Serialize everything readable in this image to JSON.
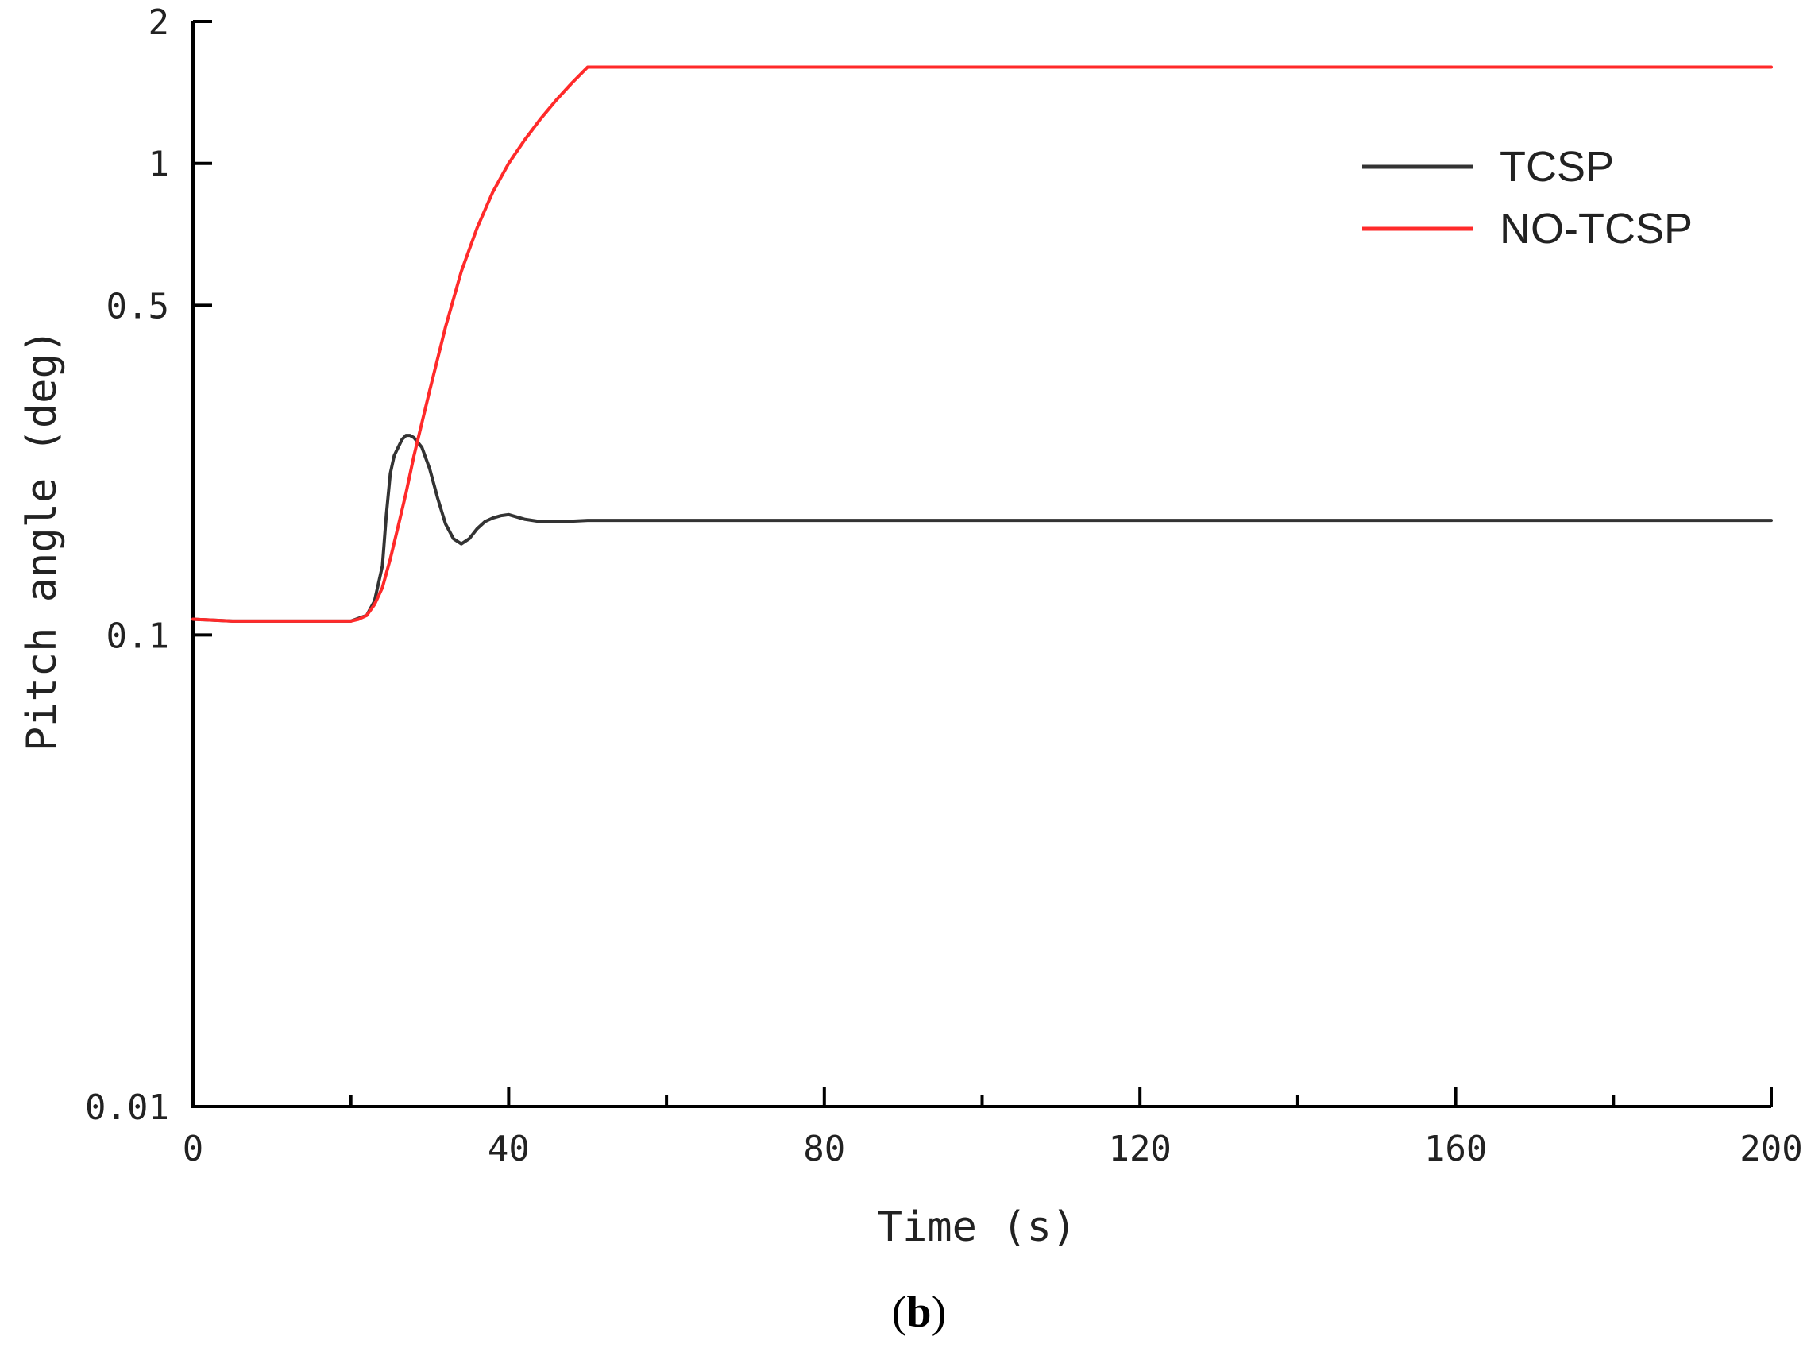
{
  "chart_data": {
    "type": "line",
    "xlabel": "Time (s)",
    "ylabel": "Pitch angle (deg)",
    "caption": {
      "open": "(",
      "letter": "b",
      "close": ")"
    },
    "xlim": [
      0,
      200
    ],
    "ylim": [
      0.01,
      2
    ],
    "yscale": "log",
    "x_ticks": [
      0,
      40,
      80,
      120,
      160,
      200
    ],
    "x_tick_labels": [
      "0",
      "40",
      "80",
      "120",
      "160",
      "200"
    ],
    "x_minor_ticks": [
      20,
      60,
      100,
      140,
      180
    ],
    "y_ticks": [
      0.01,
      0.1,
      0.5,
      1,
      2
    ],
    "y_tick_labels": [
      "0.01",
      "0.1",
      "0.5",
      "1",
      "2"
    ],
    "grid": false,
    "legend_position": "top-right",
    "series": [
      {
        "name": "TCSP",
        "color": "#333333",
        "x": [
          0,
          5,
          10,
          15,
          20,
          22,
          23,
          24,
          24.5,
          25,
          25.5,
          26,
          26.5,
          27,
          27.5,
          28,
          29,
          30,
          31,
          32,
          33,
          34,
          35,
          36,
          37,
          38,
          39,
          40,
          41,
          42,
          43,
          44,
          45,
          47,
          50,
          60,
          80,
          100,
          120,
          140,
          160,
          180,
          200
        ],
        "y": [
          0.108,
          0.107,
          0.107,
          0.107,
          0.107,
          0.11,
          0.118,
          0.14,
          0.18,
          0.22,
          0.24,
          0.25,
          0.26,
          0.265,
          0.265,
          0.262,
          0.25,
          0.225,
          0.195,
          0.172,
          0.16,
          0.156,
          0.16,
          0.168,
          0.174,
          0.177,
          0.179,
          0.18,
          0.178,
          0.176,
          0.175,
          0.174,
          0.174,
          0.174,
          0.175,
          0.175,
          0.175,
          0.175,
          0.175,
          0.175,
          0.175,
          0.175,
          0.175
        ]
      },
      {
        "name": "NO-TCSP",
        "color": "#ff2a2a",
        "x": [
          0,
          5,
          10,
          15,
          20,
          21,
          22,
          23,
          24,
          25,
          26,
          27,
          28,
          30,
          32,
          34,
          36,
          38,
          40,
          42,
          44,
          46,
          48,
          50,
          60,
          80,
          100,
          120,
          140,
          160,
          180,
          200
        ],
        "y": [
          0.108,
          0.107,
          0.107,
          0.107,
          0.107,
          0.108,
          0.11,
          0.116,
          0.126,
          0.145,
          0.17,
          0.2,
          0.24,
          0.33,
          0.45,
          0.59,
          0.73,
          0.87,
          1.0,
          1.12,
          1.24,
          1.36,
          1.48,
          1.6,
          1.6,
          1.6,
          1.6,
          1.6,
          1.6,
          1.6,
          1.6,
          1.6
        ]
      }
    ]
  }
}
